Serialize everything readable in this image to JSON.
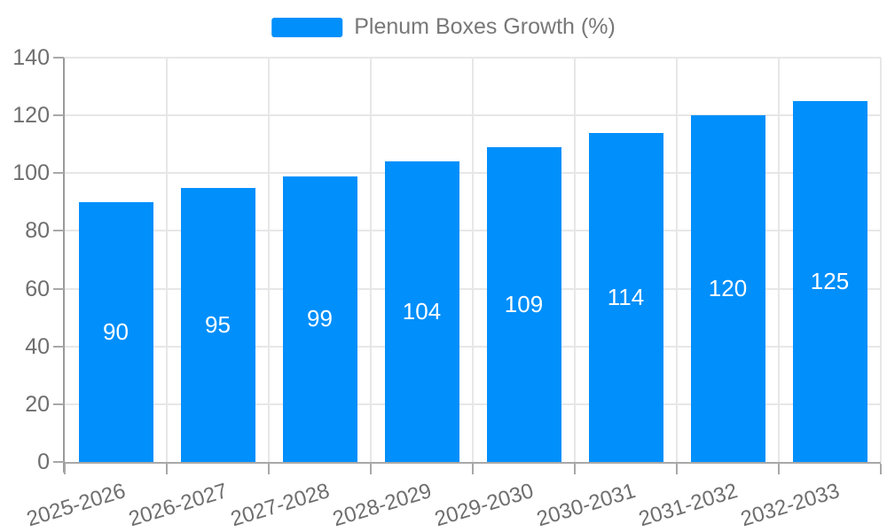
{
  "chart_data": {
    "type": "bar",
    "categories": [
      "2025-2026",
      "2026-2027",
      "2027-2028",
      "2028-2029",
      "2029-2030",
      "2030-2031",
      "2031-2032",
      "2032-2033"
    ],
    "series": [
      {
        "name": "Plenum Boxes Growth (%)",
        "values": [
          90,
          95,
          99,
          104,
          109,
          114,
          120,
          125
        ]
      }
    ],
    "ylim": [
      0,
      140
    ],
    "yticks": [
      0,
      20,
      40,
      60,
      80,
      100,
      120,
      140
    ],
    "grid": true,
    "legend": {
      "label": "Plenum Boxes Growth (%)",
      "position": "top"
    },
    "colors": {
      "bar": "#008FFB",
      "data_label": "#ffffff",
      "axis_label": "#6e6e6e",
      "legend_label": "#787878",
      "gridline": "#e7e7e7",
      "axis_line": "#a8a8a8",
      "background": "#ffffff"
    }
  }
}
